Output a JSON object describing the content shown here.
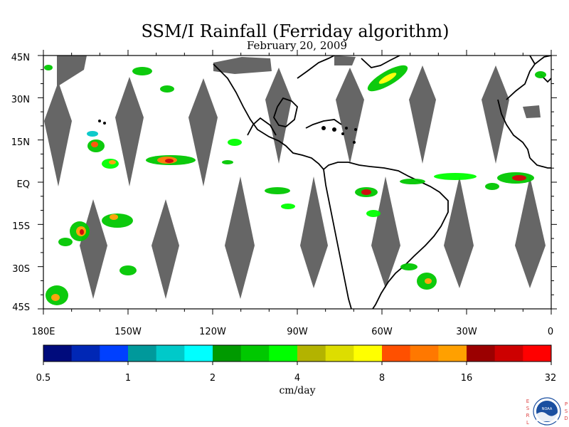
{
  "title": "SSM/I Rainfall (Ferriday algorithm)",
  "subtitle": "February 20, 2009",
  "map": {
    "lat_labels": [
      "45N",
      "30N",
      "15N",
      "EQ",
      "15S",
      "30S",
      "45S"
    ],
    "lon_labels": [
      "180E",
      "150W",
      "120W",
      "90W",
      "60W",
      "30W",
      "0"
    ],
    "land_color": "#000000",
    "nodata_color": "#666666"
  },
  "colorbar": {
    "unit_label": "cm/day",
    "tick_labels": [
      "0.5",
      "1",
      "2",
      "4",
      "8",
      "16",
      "32"
    ],
    "colors": [
      "#000b7c",
      "#0027b5",
      "#0040ff",
      "#00999b",
      "#00c9c9",
      "#00ffff",
      "#009a00",
      "#00c800",
      "#00ff00",
      "#b3b300",
      "#dddd00",
      "#ffff00",
      "#ff5000",
      "#ff7800",
      "#ffa000",
      "#9b0000",
      "#cd0000",
      "#ff0000"
    ]
  },
  "logo": {
    "left_text": "ESRL",
    "right_text": "PSD",
    "badge_text": "NOAA"
  }
}
